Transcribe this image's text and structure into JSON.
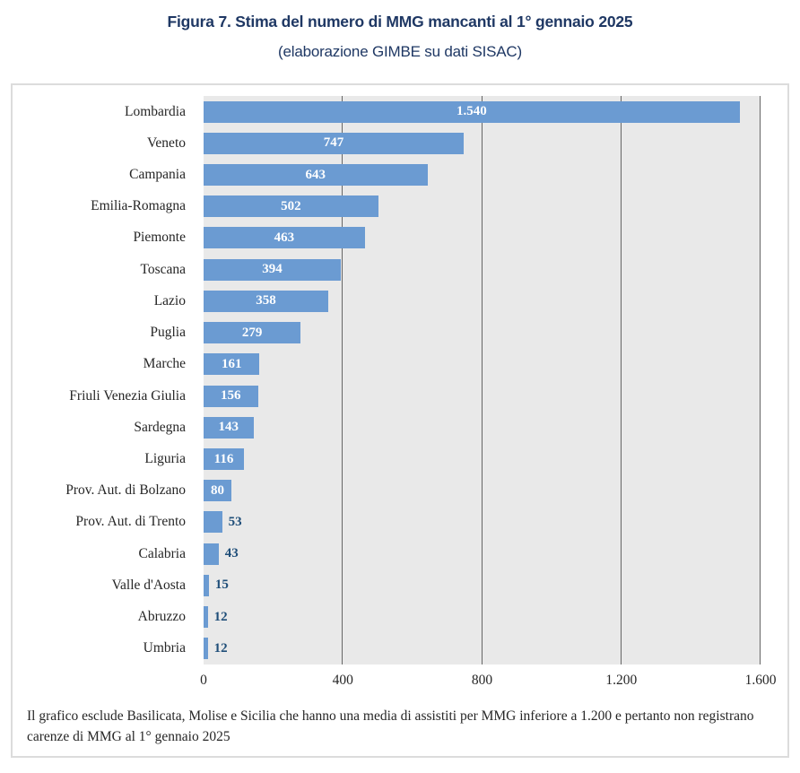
{
  "title": "Figura 7. Stima del numero di MMG mancanti al 1° gennaio 2025",
  "subtitle": "(elaborazione GIMBE su dati SISAC)",
  "footnote": "Il grafico esclude Basilicata, Molise e Sicilia che hanno una media di assistiti per MMG inferiore a 1.200 e pertanto non registrano carenze di MMG al 1° gennaio 2025",
  "colors": {
    "title_color": "#1F3864",
    "bar_color": "#6B9BD2",
    "plot_bg": "#E9E9E9",
    "gridline_color": "#666666",
    "value_inside": "#FFFFFF",
    "value_outside": "#1F4E79",
    "label_color": "#262626",
    "border_color": "#DCDCDC"
  },
  "chart_data": {
    "type": "bar",
    "orientation": "horizontal",
    "title": "Figura 7. Stima del numero di MMG mancanti al 1° gennaio 2025",
    "subtitle": "(elaborazione GIMBE su dati SISAC)",
    "xlabel": "",
    "ylabel": "",
    "xlim": [
      0,
      1600
    ],
    "grid": true,
    "legend": "none",
    "gridlines": [
      400,
      800,
      1200,
      1600
    ],
    "x_ticks": [
      {
        "value": 0,
        "label": "0"
      },
      {
        "value": 400,
        "label": "400"
      },
      {
        "value": 800,
        "label": "800"
      },
      {
        "value": 1200,
        "label": "1.200"
      },
      {
        "value": 1600,
        "label": "1.600"
      }
    ],
    "series": [
      {
        "name": "Lombardia",
        "value": 1540,
        "label": "1.540",
        "label_position": "inside"
      },
      {
        "name": "Veneto",
        "value": 747,
        "label": "747",
        "label_position": "inside"
      },
      {
        "name": "Campania",
        "value": 643,
        "label": "643",
        "label_position": "inside"
      },
      {
        "name": "Emilia-Romagna",
        "value": 502,
        "label": "502",
        "label_position": "inside"
      },
      {
        "name": "Piemonte",
        "value": 463,
        "label": "463",
        "label_position": "inside"
      },
      {
        "name": "Toscana",
        "value": 394,
        "label": "394",
        "label_position": "inside"
      },
      {
        "name": "Lazio",
        "value": 358,
        "label": "358",
        "label_position": "inside"
      },
      {
        "name": "Puglia",
        "value": 279,
        "label": "279",
        "label_position": "inside"
      },
      {
        "name": "Marche",
        "value": 161,
        "label": "161",
        "label_position": "inside"
      },
      {
        "name": "Friuli Venezia Giulia",
        "value": 156,
        "label": "156",
        "label_position": "inside"
      },
      {
        "name": "Sardegna",
        "value": 143,
        "label": "143",
        "label_position": "inside"
      },
      {
        "name": "Liguria",
        "value": 116,
        "label": "116",
        "label_position": "inside"
      },
      {
        "name": "Prov. Aut. di Bolzano",
        "value": 80,
        "label": "80",
        "label_position": "inside"
      },
      {
        "name": "Prov. Aut. di Trento",
        "value": 53,
        "label": "53",
        "label_position": "outside"
      },
      {
        "name": "Calabria",
        "value": 43,
        "label": "43",
        "label_position": "outside"
      },
      {
        "name": "Valle d'Aosta",
        "value": 15,
        "label": "15",
        "label_position": "outside"
      },
      {
        "name": "Abruzzo",
        "value": 12,
        "label": "12",
        "label_position": "outside"
      },
      {
        "name": "Umbria",
        "value": 12,
        "label": "12",
        "label_position": "outside"
      }
    ]
  }
}
